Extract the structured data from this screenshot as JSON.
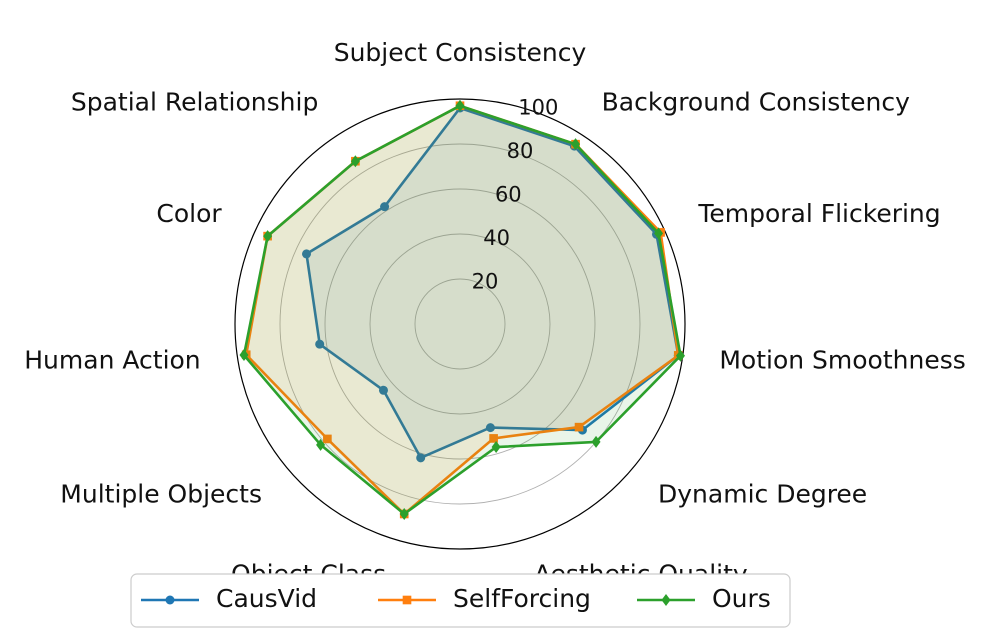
{
  "chart_data": {
    "type": "radar",
    "axes": [
      "Subject Consistency",
      "Background Consistency",
      "Temporal Flickering",
      "Motion Smoothness",
      "Dynamic Degree",
      "Aesthetic Quality",
      "Object Class",
      "Multiple Objects",
      "Human Action",
      "Color",
      "Spatial Relationship"
    ],
    "rlim": [
      0,
      100
    ],
    "rticks": [
      20,
      40,
      60,
      80,
      100
    ],
    "rtick_labels": [
      "20",
      "40",
      "60",
      "80",
      "100"
    ],
    "grid": true,
    "legend_position": "bottom",
    "series": [
      {
        "name": "CausVid",
        "color": "#1f77b4",
        "marker": "circle",
        "values": [
          96,
          94,
          96,
          98,
          72,
          48,
          62,
          45,
          63,
          75,
          62
        ]
      },
      {
        "name": "SelfForcing",
        "color": "#ff7f0e",
        "marker": "square",
        "values": [
          97,
          95,
          98,
          98,
          70,
          53,
          88,
          78,
          96,
          94,
          86
        ]
      },
      {
        "name": "Ours",
        "color": "#2ca02c",
        "marker": "diamond",
        "values": [
          97,
          95,
          97,
          99,
          80,
          57,
          88,
          82,
          97,
          94,
          86
        ]
      }
    ]
  }
}
